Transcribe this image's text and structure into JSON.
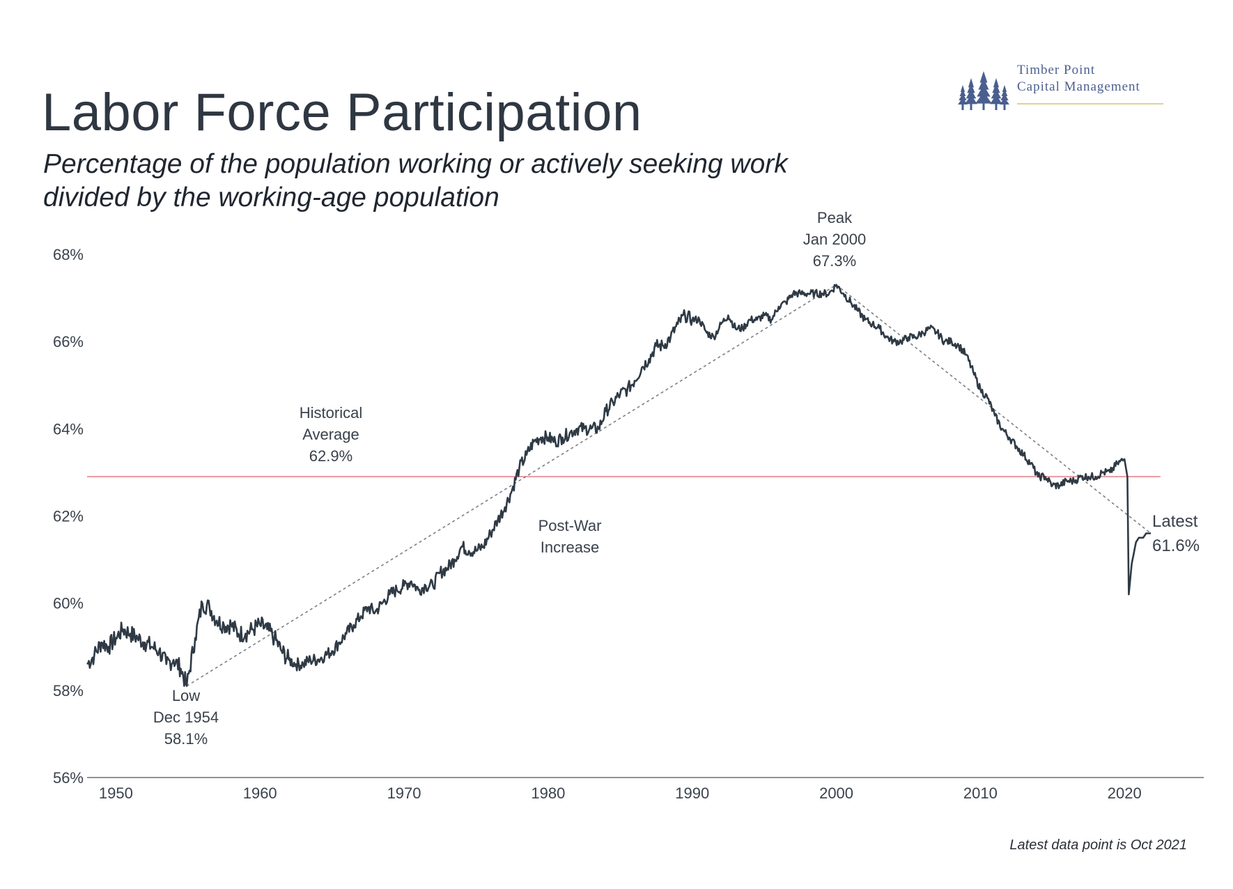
{
  "brand": {
    "line1": "Timber Point",
    "line2": "Capital Management",
    "tree_color": "#4a5f8f"
  },
  "colors": {
    "series": "#2f3a45",
    "average": "#e89aa3",
    "trend": "#7a7f86"
  },
  "chart_data": {
    "type": "line",
    "title": "Labor Force Participation",
    "subtitle": "Percentage of the population working or actively seeking work divided by the working-age population",
    "xlabel": "",
    "ylabel": "",
    "xlim": [
      1948,
      2025.5
    ],
    "ylim": [
      56,
      68
    ],
    "x_ticks": [
      "1950",
      "1960",
      "1970",
      "1980",
      "1990",
      "2000",
      "2010",
      "2020"
    ],
    "y_ticks": [
      "56%",
      "58%",
      "60%",
      "62%",
      "64%",
      "66%",
      "68%"
    ],
    "grid": false,
    "series": [
      {
        "x": [
          1948.0,
          1948.5,
          1949.0,
          1949.5,
          1950.0,
          1950.5,
          1951.0,
          1951.5,
          1952.0,
          1952.5,
          1953.0,
          1953.5,
          1954.0,
          1954.5,
          1954.92,
          1955.5,
          1956.0,
          1956.5,
          1957.0,
          1957.5,
          1958.0,
          1958.5,
          1959.0,
          1959.5,
          1960.0,
          1960.5,
          1961.0,
          1961.5,
          1962.0,
          1962.5,
          1963.0,
          1963.5,
          1964.0,
          1964.5,
          1965.0,
          1965.5,
          1966.0,
          1966.5,
          1967.0,
          1967.5,
          1968.0,
          1968.5,
          1969.0,
          1969.5,
          1970.0,
          1970.5,
          1971.0,
          1971.5,
          1972.0,
          1972.5,
          1973.0,
          1973.5,
          1974.0,
          1974.5,
          1975.0,
          1975.5,
          1976.0,
          1976.5,
          1977.0,
          1977.5,
          1978.0,
          1978.5,
          1979.0,
          1979.5,
          1980.0,
          1980.5,
          1981.0,
          1981.5,
          1982.0,
          1982.5,
          1983.0,
          1983.5,
          1984.0,
          1984.5,
          1985.0,
          1985.5,
          1986.0,
          1986.5,
          1987.0,
          1987.5,
          1988.0,
          1988.5,
          1989.0,
          1989.5,
          1990.0,
          1990.5,
          1991.0,
          1991.5,
          1992.0,
          1992.5,
          1993.0,
          1993.5,
          1994.0,
          1994.5,
          1995.0,
          1995.5,
          1996.0,
          1996.5,
          1997.0,
          1997.5,
          1998.0,
          1998.5,
          1999.0,
          1999.5,
          2000.0,
          2000.5,
          2001.0,
          2001.5,
          2002.0,
          2002.5,
          2003.0,
          2003.5,
          2004.0,
          2004.5,
          2005.0,
          2005.5,
          2006.0,
          2006.5,
          2007.0,
          2007.5,
          2008.0,
          2008.5,
          2009.0,
          2009.5,
          2010.0,
          2010.5,
          2011.0,
          2011.5,
          2012.0,
          2012.5,
          2013.0,
          2013.5,
          2014.0,
          2014.5,
          2015.0,
          2015.5,
          2016.0,
          2016.5,
          2017.0,
          2017.5,
          2018.0,
          2018.5,
          2019.0,
          2019.5,
          2020.0,
          2020.2,
          2020.3,
          2020.5,
          2020.8,
          2021.0,
          2021.3,
          2021.5,
          2021.83
        ],
        "values": [
          58.6,
          58.8,
          59.1,
          59.0,
          59.2,
          59.4,
          59.3,
          59.2,
          59.1,
          59.0,
          58.9,
          58.6,
          58.7,
          58.5,
          58.1,
          59.2,
          60.0,
          59.9,
          59.6,
          59.5,
          59.5,
          59.3,
          59.3,
          59.4,
          59.5,
          59.4,
          59.2,
          58.9,
          58.7,
          58.6,
          58.6,
          58.7,
          58.7,
          58.8,
          58.9,
          59.1,
          59.3,
          59.5,
          59.7,
          59.9,
          59.8,
          60.0,
          60.2,
          60.3,
          60.4,
          60.5,
          60.3,
          60.4,
          60.4,
          60.7,
          60.8,
          61.0,
          61.3,
          61.2,
          61.2,
          61.3,
          61.6,
          61.9,
          62.2,
          62.6,
          63.1,
          63.4,
          63.7,
          63.8,
          63.8,
          63.7,
          63.8,
          63.9,
          64.0,
          64.0,
          64.0,
          64.0,
          64.4,
          64.6,
          64.8,
          64.9,
          65.1,
          65.4,
          65.6,
          65.9,
          65.9,
          66.1,
          66.4,
          66.6,
          66.5,
          66.5,
          66.2,
          66.1,
          66.4,
          66.6,
          66.3,
          66.3,
          66.5,
          66.5,
          66.6,
          66.5,
          66.8,
          66.9,
          67.1,
          67.1,
          67.1,
          67.1,
          67.1,
          67.1,
          67.3,
          67.1,
          66.9,
          66.7,
          66.5,
          66.4,
          66.3,
          66.1,
          66.0,
          66.0,
          66.1,
          66.1,
          66.2,
          66.3,
          66.2,
          66.0,
          66.0,
          65.9,
          65.7,
          65.3,
          64.9,
          64.7,
          64.3,
          64.0,
          63.8,
          63.6,
          63.4,
          63.2,
          62.9,
          62.9,
          62.7,
          62.7,
          62.8,
          62.8,
          62.9,
          62.9,
          62.9,
          63.0,
          63.0,
          63.2,
          63.3,
          62.9,
          60.2,
          60.9,
          61.4,
          61.5,
          61.5,
          61.6,
          61.6
        ]
      }
    ],
    "average": {
      "value": 62.9,
      "label_lines": [
        "Historical",
        "Average",
        "62.9%"
      ]
    },
    "trendline": [
      [
        1954.92,
        58.1
      ],
      [
        2000.0,
        67.3
      ],
      [
        2021.83,
        61.6
      ]
    ],
    "annotations": {
      "low": [
        "Low",
        "Dec 1954",
        "58.1%"
      ],
      "peak": [
        "Peak",
        "Jan 2000",
        "67.3%"
      ],
      "postwar": [
        "Post-War",
        "Increase"
      ],
      "latest": [
        "Latest",
        "61.6%"
      ]
    }
  },
  "footnote": "Latest data point is Oct 2021"
}
